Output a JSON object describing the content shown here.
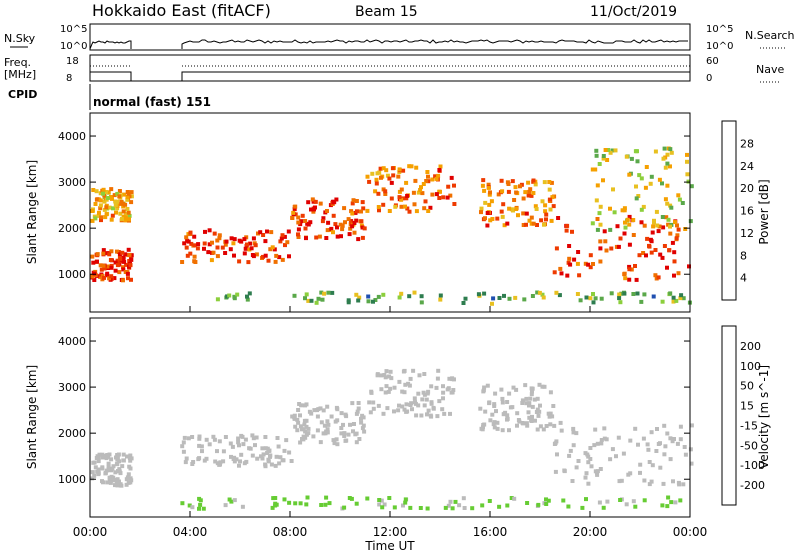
{
  "header": {
    "station": "Hokkaido East (fitACF)",
    "beam": "Beam 15",
    "date": "11/Oct/2019"
  },
  "top_panels": {
    "nsky": {
      "label": "N.Sky",
      "tick_top": "10^5",
      "tick_bottom": "10^0",
      "right_label": "N.Search",
      "right_tick_top": "10^5",
      "right_tick_bottom": "10^0"
    },
    "freq": {
      "label_line1": "Freq.",
      "label_line2": "[MHz]",
      "tick_top": "18",
      "tick_bottom": "8",
      "right_label": "Nave",
      "right_tick_top": "60",
      "right_tick_bottom": "0"
    },
    "cpid": {
      "label": "CPID",
      "mode_text": "normal (fast) 151"
    }
  },
  "x_axis": {
    "label": "Time UT",
    "ticks": [
      "00:00",
      "04:00",
      "08:00",
      "12:00",
      "16:00",
      "20:00",
      "00:00"
    ]
  },
  "colors": {
    "power_scale": [
      "#0000ff",
      "#1f4fb0",
      "#2e7d4f",
      "#5aa84a",
      "#8ccf3c",
      "#e8c020",
      "#f5a000",
      "#f07000",
      "#ee3a00",
      "#e00000"
    ],
    "velocity_scale": [
      "#ff0000",
      "#ff5500",
      "#ff9900",
      "#ffcc33",
      "#bbbbbb",
      "#bbbbbb",
      "#66cc33",
      "#2e8b57",
      "#1f4fb0",
      "#2020c0"
    ]
  },
  "chart_data": [
    {
      "type": "heatmap",
      "name": "power",
      "xlabel": "",
      "ylabel": "Slant Range [km]",
      "yticks": [
        "1000",
        "2000",
        "3000",
        "4000"
      ],
      "xlim_hours": [
        0,
        24
      ],
      "ylim_km": [
        180,
        4500
      ],
      "colorbar_label": "Power [dB]",
      "colorbar_ticks": [
        "4",
        "8",
        "12",
        "16",
        "20",
        "24",
        "28"
      ],
      "colorbar_range": [
        0,
        32
      ],
      "data_gaps_hours": [
        [
          1.6,
          3.6
        ]
      ],
      "echo_bands": [
        {
          "t0": 0.0,
          "t1": 1.6,
          "r0": 900,
          "r1": 1600,
          "level": 28
        },
        {
          "t0": 0.0,
          "t1": 1.6,
          "r0": 2200,
          "r1": 2900,
          "level": 20
        },
        {
          "t0": 3.6,
          "t1": 8.0,
          "r0": 1300,
          "r1": 2000,
          "level": 28
        },
        {
          "t0": 8.0,
          "t1": 11.0,
          "r0": 1800,
          "r1": 2700,
          "level": 28
        },
        {
          "t0": 11.0,
          "t1": 14.5,
          "r0": 2400,
          "r1": 3400,
          "level": 24
        },
        {
          "t0": 15.5,
          "t1": 18.5,
          "r0": 2100,
          "r1": 3100,
          "level": 24
        },
        {
          "t0": 18.5,
          "t1": 24.0,
          "r0": 900,
          "r1": 2300,
          "level": 28
        },
        {
          "t0": 20.0,
          "t1": 24.0,
          "r0": 2000,
          "r1": 3800,
          "level": 16
        },
        {
          "t0": 3.6,
          "t1": 24.0,
          "r0": 400,
          "r1": 650,
          "level": 12
        }
      ]
    },
    {
      "type": "heatmap",
      "name": "velocity",
      "xlabel": "Time UT",
      "ylabel": "Slant Range [km]",
      "yticks": [
        "1000",
        "2000",
        "3000",
        "4000"
      ],
      "xlim_hours": [
        0,
        24
      ],
      "ylim_km": [
        180,
        4500
      ],
      "colorbar_label": "Velocity [m s^-1]",
      "colorbar_ticks": [
        "-200",
        "-100",
        "-50",
        "-15",
        "15",
        "50",
        "100",
        "200"
      ],
      "colorbar_range": [
        -250,
        250
      ],
      "data_gaps_hours": [
        [
          1.6,
          3.6
        ]
      ],
      "echo_bands": [
        {
          "t0": 0.0,
          "t1": 1.6,
          "r0": 900,
          "r1": 1600,
          "level": 0
        },
        {
          "t0": 3.6,
          "t1": 8.0,
          "r0": 1300,
          "r1": 2000,
          "level": 0
        },
        {
          "t0": 8.0,
          "t1": 11.0,
          "r0": 1800,
          "r1": 2700,
          "level": 0
        },
        {
          "t0": 11.0,
          "t1": 14.5,
          "r0": 2400,
          "r1": 3400,
          "level": -30
        },
        {
          "t0": 15.5,
          "t1": 18.5,
          "r0": 2100,
          "r1": 3100,
          "level": 0
        },
        {
          "t0": 18.5,
          "t1": 24.0,
          "r0": 900,
          "r1": 2300,
          "level": 0
        },
        {
          "t0": 3.6,
          "t1": 24.0,
          "r0": 400,
          "r1": 650,
          "level": 60
        }
      ]
    }
  ]
}
